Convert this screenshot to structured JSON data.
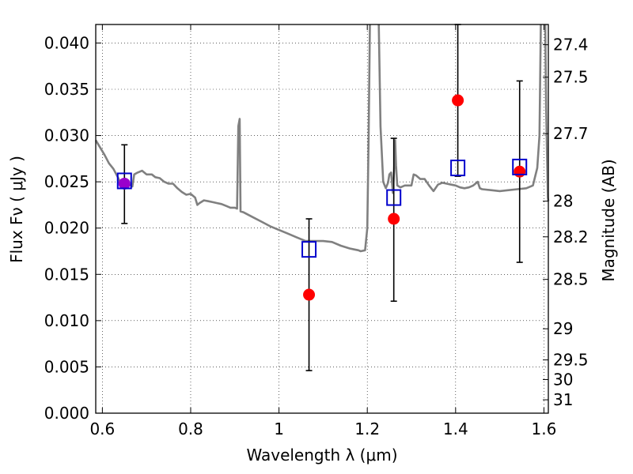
{
  "chart_data": {
    "type": "scatter",
    "xlabel": "Wavelength  λ (μm)",
    "ylabel": "Flux  Fν  ( μJy )",
    "ylabel_right": "Magnitude (AB)",
    "xlim": [
      0.585,
      1.61
    ],
    "ylim": [
      0.0,
      0.042
    ],
    "grid": true,
    "x_ticks": [
      0.6,
      0.8,
      1.0,
      1.2,
      1.4,
      1.6
    ],
    "x_tick_labels": [
      "0.6",
      "0.8",
      "1",
      "1.2",
      "1.4",
      "1.6"
    ],
    "y_ticks": [
      0.0,
      0.005,
      0.01,
      0.015,
      0.02,
      0.025,
      0.03,
      0.035,
      0.04
    ],
    "y_tick_labels": [
      "0.000",
      "0.005",
      "0.010",
      "0.015",
      "0.020",
      "0.025",
      "0.030",
      "0.035",
      "0.040"
    ],
    "mag_ticks": [
      27.4,
      27.5,
      27.7,
      28,
      28.2,
      28.5,
      29,
      29.5,
      30,
      31
    ],
    "mag_tick_labels": [
      "27.4",
      "27.5",
      "27.7",
      "28",
      "28.2",
      "28.5",
      "29",
      "29.5",
      "30",
      "31"
    ],
    "colors": {
      "model": "#808080",
      "observed": "#ff0000",
      "synthetic": "#0000cc",
      "errorbar": "#000000",
      "overlap": "#9900cc"
    },
    "series": [
      {
        "kind": "line",
        "points": [
          [
            0.585,
            0.0295
          ],
          [
            0.595,
            0.0287
          ],
          [
            0.605,
            0.0279
          ],
          [
            0.615,
            0.027
          ],
          [
            0.625,
            0.0264
          ],
          [
            0.635,
            0.0255
          ],
          [
            0.642,
            0.0248
          ],
          [
            0.648,
            0.025
          ],
          [
            0.66,
            0.0247
          ],
          [
            0.668,
            0.0245
          ],
          [
            0.672,
            0.0258
          ],
          [
            0.68,
            0.026
          ],
          [
            0.69,
            0.0262
          ],
          [
            0.7,
            0.0258
          ],
          [
            0.712,
            0.0258
          ],
          [
            0.72,
            0.0255
          ],
          [
            0.73,
            0.0254
          ],
          [
            0.74,
            0.025
          ],
          [
            0.75,
            0.0248
          ],
          [
            0.76,
            0.0248
          ],
          [
            0.77,
            0.0243
          ],
          [
            0.78,
            0.0239
          ],
          [
            0.79,
            0.0236
          ],
          [
            0.8,
            0.0237
          ],
          [
            0.81,
            0.0233
          ],
          [
            0.815,
            0.0225
          ],
          [
            0.82,
            0.0227
          ],
          [
            0.83,
            0.023
          ],
          [
            0.84,
            0.0229
          ],
          [
            0.85,
            0.0228
          ],
          [
            0.86,
            0.0227
          ],
          [
            0.87,
            0.0226
          ],
          [
            0.88,
            0.0224
          ],
          [
            0.89,
            0.0222
          ],
          [
            0.9,
            0.0222
          ],
          [
            0.905,
            0.0221
          ],
          [
            0.908,
            0.031
          ],
          [
            0.911,
            0.0318
          ],
          [
            0.913,
            0.0218
          ],
          [
            0.92,
            0.0217
          ],
          [
            0.94,
            0.0212
          ],
          [
            0.96,
            0.0207
          ],
          [
            0.98,
            0.0202
          ],
          [
            1.0,
            0.0198
          ],
          [
            1.02,
            0.0194
          ],
          [
            1.04,
            0.019
          ],
          [
            1.06,
            0.0186
          ],
          [
            1.08,
            0.0186
          ],
          [
            1.1,
            0.0186
          ],
          [
            1.12,
            0.0185
          ],
          [
            1.14,
            0.0181
          ],
          [
            1.16,
            0.0178
          ],
          [
            1.17,
            0.0177
          ],
          [
            1.18,
            0.0176
          ],
          [
            1.185,
            0.0175
          ],
          [
            1.195,
            0.0176
          ],
          [
            1.2,
            0.02
          ],
          [
            1.203,
            0.03
          ],
          [
            1.206,
            0.042
          ]
        ]
      },
      {
        "kind": "line",
        "points": [
          [
            1.226,
            0.042
          ],
          [
            1.23,
            0.031
          ],
          [
            1.236,
            0.025
          ],
          [
            1.242,
            0.0243
          ],
          [
            1.247,
            0.0249
          ],
          [
            1.25,
            0.0258
          ],
          [
            1.254,
            0.026
          ],
          [
            1.258,
            0.0238
          ],
          [
            1.261,
            0.0265
          ],
          [
            1.263,
            0.0295
          ],
          [
            1.265,
            0.0268
          ],
          [
            1.268,
            0.0246
          ],
          [
            1.275,
            0.0244
          ],
          [
            1.285,
            0.0246
          ],
          [
            1.3,
            0.0246
          ],
          [
            1.305,
            0.0258
          ],
          [
            1.31,
            0.0257
          ],
          [
            1.32,
            0.0253
          ],
          [
            1.33,
            0.0253
          ],
          [
            1.34,
            0.0246
          ],
          [
            1.35,
            0.024
          ],
          [
            1.36,
            0.0247
          ],
          [
            1.37,
            0.0249
          ],
          [
            1.38,
            0.0248
          ],
          [
            1.39,
            0.0247
          ],
          [
            1.4,
            0.0246
          ],
          [
            1.41,
            0.0244
          ],
          [
            1.42,
            0.0243
          ],
          [
            1.43,
            0.0244
          ],
          [
            1.44,
            0.0246
          ],
          [
            1.45,
            0.025
          ],
          [
            1.455,
            0.0243
          ],
          [
            1.46,
            0.0242
          ],
          [
            1.48,
            0.0241
          ],
          [
            1.5,
            0.024
          ],
          [
            1.52,
            0.0241
          ],
          [
            1.54,
            0.0242
          ],
          [
            1.56,
            0.0243
          ],
          [
            1.575,
            0.0246
          ],
          [
            1.585,
            0.0265
          ],
          [
            1.59,
            0.03
          ],
          [
            1.593,
            0.042
          ]
        ]
      },
      {
        "kind": "line",
        "points": [
          [
            1.603,
            0.042
          ],
          [
            1.605,
            0.033
          ],
          [
            1.607,
            0.028
          ],
          [
            1.609,
            0.0233
          ],
          [
            1.61,
            0.0229
          ]
        ]
      },
      {
        "kind": "errorbar",
        "points": [
          {
            "x": 0.65,
            "y": 0.0248,
            "ylo": 0.0205,
            "yhi": 0.029
          },
          {
            "x": 1.068,
            "y": 0.0128,
            "ylo": 0.0046,
            "yhi": 0.021
          },
          {
            "x": 1.26,
            "y": 0.021,
            "ylo": 0.0121,
            "yhi": 0.0297
          },
          {
            "x": 1.405,
            "y": 0.0338,
            "ylo": 0.0256,
            "yhi": 0.042
          },
          {
            "x": 1.545,
            "y": 0.0261,
            "ylo": 0.0163,
            "yhi": 0.0359
          }
        ]
      },
      {
        "kind": "squares",
        "points": [
          [
            0.65,
            0.0251
          ],
          [
            1.068,
            0.0177
          ],
          [
            1.26,
            0.0233
          ],
          [
            1.405,
            0.0265
          ],
          [
            1.545,
            0.0266
          ]
        ]
      }
    ]
  }
}
